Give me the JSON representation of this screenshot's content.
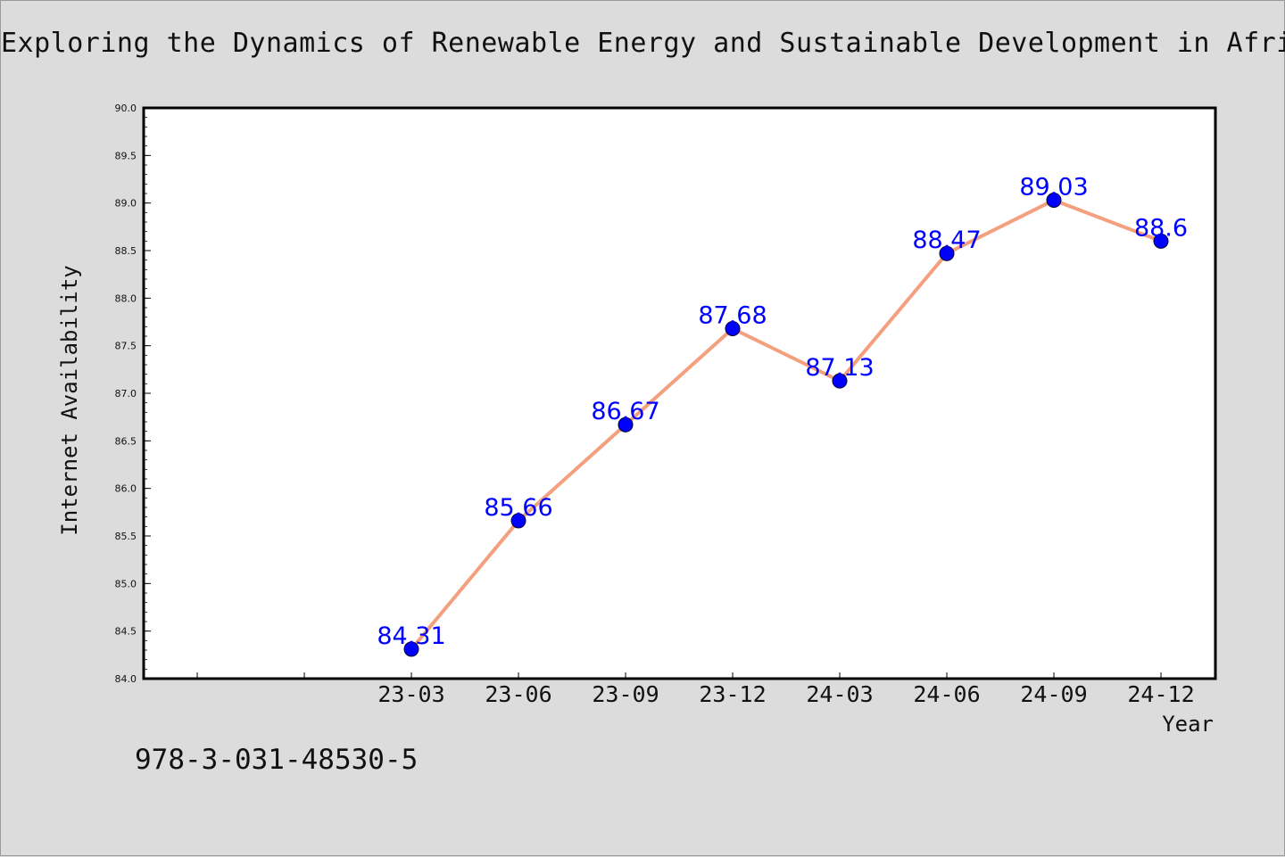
{
  "chart_data": {
    "type": "line",
    "title": "Exploring the Dynamics of Renewable Energy and Sustainable Development in Africa",
    "xlabel": "Year",
    "ylabel": "Internet Availability",
    "categories": [
      "23-03",
      "23-06",
      "23-09",
      "23-12",
      "24-03",
      "24-06",
      "24-09",
      "24-12"
    ],
    "series": [
      {
        "values": [
          84.31,
          85.66,
          86.67,
          87.68,
          87.13,
          88.47,
          89.03,
          88.6
        ]
      }
    ],
    "data_labels": [
      "84.31",
      "85.66",
      "86.67",
      "87.68",
      "87.13",
      "88.47",
      "89.03",
      "88.6"
    ],
    "ylim": [
      84.0,
      90.0
    ],
    "yticks": [
      "84.0",
      "84.5",
      "85.0",
      "85.5",
      "86.0",
      "86.5",
      "87.0",
      "87.5",
      "88.0",
      "88.5",
      "89.0",
      "89.5",
      "90.0"
    ],
    "grid": false,
    "colors": {
      "line": "#f4a07e",
      "marker": "#0000ff",
      "label": "#0000ff",
      "background": "#dcdcdc",
      "plot_background": "#ffffff"
    }
  },
  "footer": {
    "isbn": "978-3-031-48530-5"
  }
}
